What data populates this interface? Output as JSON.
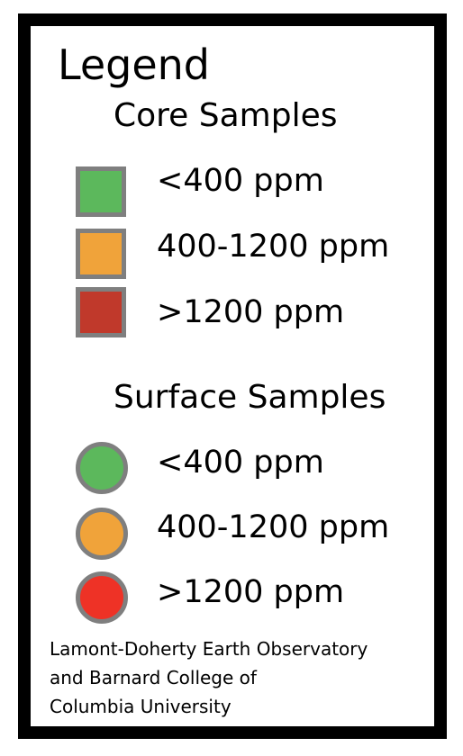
{
  "legend": {
    "title": "Legend",
    "core": {
      "heading": "Core Samples",
      "items": [
        {
          "label": "<400 ppm",
          "color": "#5cb85c",
          "shape": "square"
        },
        {
          "label": "400-1200 ppm",
          "color": "#f0a33a",
          "shape": "square"
        },
        {
          "label": ">1200 ppm",
          "color": "#c0392b",
          "shape": "square"
        }
      ]
    },
    "surface": {
      "heading": "Surface Samples",
      "items": [
        {
          "label": "<400 ppm",
          "color": "#5cb85c",
          "shape": "circle"
        },
        {
          "label": "400-1200 ppm",
          "color": "#f0a33a",
          "shape": "circle"
        },
        {
          "label": ">1200 ppm",
          "color": "#ee3226",
          "shape": "circle"
        }
      ]
    },
    "credit": {
      "line1": "Lamont-Doherty Earth Observatory",
      "line2": "and Barnard College of",
      "line3": "Columbia University"
    },
    "colors": {
      "frame": "#000000",
      "swatch_border": "#7f7f7f"
    }
  }
}
